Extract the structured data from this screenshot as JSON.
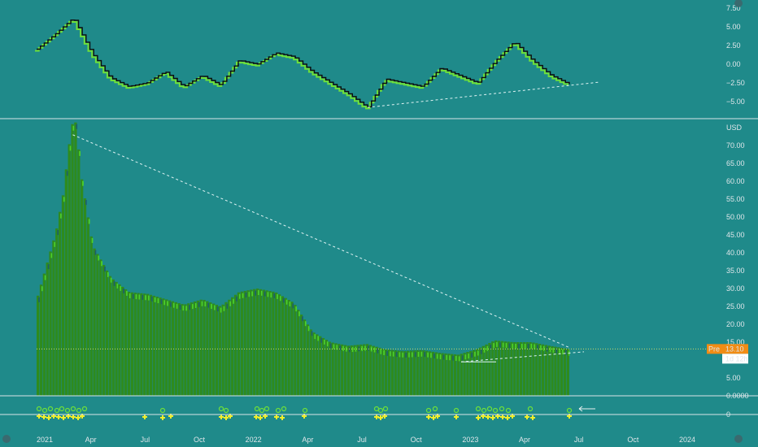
{
  "colors": {
    "background": "#1f8a8a",
    "divider": "#d8e4e8",
    "bar_fill": "#2e8b1e",
    "bar_highlight": "#4dd12a",
    "bar_shadow": "#1d5f6a",
    "oscillator_dark": "#0d0d0d",
    "oscillator_green": "#6ee03a",
    "trendline": "#dff3f3",
    "marker_yellow": "#f2ee2a",
    "marker_green": "#6ee03a",
    "price_line": "#c9d86a",
    "price_tag": "#f08c14"
  },
  "price_axis": {
    "currency": "USD",
    "ticks": [
      "70.00",
      "65.00",
      "60.00",
      "55.00",
      "50.00",
      "45.00",
      "40.00",
      "35.00",
      "30.00",
      "25.00",
      "20.00",
      "15.00",
      "5.00",
      "0.0000"
    ],
    "current_price": "13.10",
    "pre_label": "Pre",
    "countdown": "1d 12h"
  },
  "oscillator_axis": {
    "ticks": [
      "7.50",
      "5.00",
      "2.50",
      "0.00",
      "−2.50",
      "−5.00"
    ]
  },
  "marker_axis": {
    "ticks": [
      "0"
    ]
  },
  "date_axis": {
    "labels": [
      "2021",
      "Apr",
      "Jul",
      "Oct",
      "2022",
      "Apr",
      "Jul",
      "Oct",
      "2023",
      "Apr",
      "Jul",
      "Oct",
      "2024"
    ]
  },
  "chart_data": [
    {
      "type": "bar",
      "panel": "price",
      "ylabel": "USD",
      "ylim": [
        0,
        75
      ],
      "x": [
        "2021-01",
        "2021-02",
        "2021-03",
        "2021-04",
        "2021-05",
        "2021-06",
        "2021-07",
        "2021-08",
        "2021-09",
        "2021-10",
        "2021-11",
        "2021-12",
        "2022-01",
        "2022-02",
        "2022-03",
        "2022-04",
        "2022-05",
        "2022-06",
        "2022-07",
        "2022-08",
        "2022-09",
        "2022-10",
        "2022-11",
        "2022-12",
        "2023-01",
        "2023-02",
        "2023-03",
        "2023-04",
        "2023-05",
        "2023-06"
      ],
      "series": [
        {
          "values": [
            28,
            46,
            73,
            42,
            33,
            29,
            28.5,
            27,
            25.5,
            27,
            25,
            29,
            30,
            29,
            26,
            18,
            15,
            14,
            14.5,
            13,
            12.5,
            12.8,
            12,
            11.5,
            13,
            15.5,
            15,
            15,
            14,
            13.1
          ]
        }
      ],
      "reference_price": 13.1
    },
    {
      "type": "line",
      "panel": "oscillator",
      "ylim": [
        -6,
        7.5
      ],
      "x": [
        "2021-01",
        "2021-02",
        "2021-03",
        "2021-04",
        "2021-05",
        "2021-06",
        "2021-07",
        "2021-08",
        "2021-09",
        "2021-10",
        "2021-11",
        "2021-12",
        "2022-01",
        "2022-02",
        "2022-03",
        "2022-04",
        "2022-05",
        "2022-06",
        "2022-07",
        "2022-08",
        "2022-09",
        "2022-10",
        "2022-11",
        "2022-12",
        "2023-01",
        "2023-02",
        "2023-03",
        "2023-04",
        "2023-05",
        "2023-06"
      ],
      "series": [
        {
          "values": [
            2.0,
            4.0,
            6.2,
            1.5,
            -1.8,
            -3.0,
            -2.5,
            -1.0,
            -3.0,
            -1.5,
            -2.8,
            0.5,
            0.0,
            1.5,
            1.0,
            -1.0,
            -2.5,
            -4.0,
            -5.8,
            -2.0,
            -2.5,
            -3.0,
            -0.5,
            -1.5,
            -2.5,
            0.5,
            3.0,
            0.5,
            -1.5,
            -2.7
          ]
        }
      ]
    }
  ]
}
